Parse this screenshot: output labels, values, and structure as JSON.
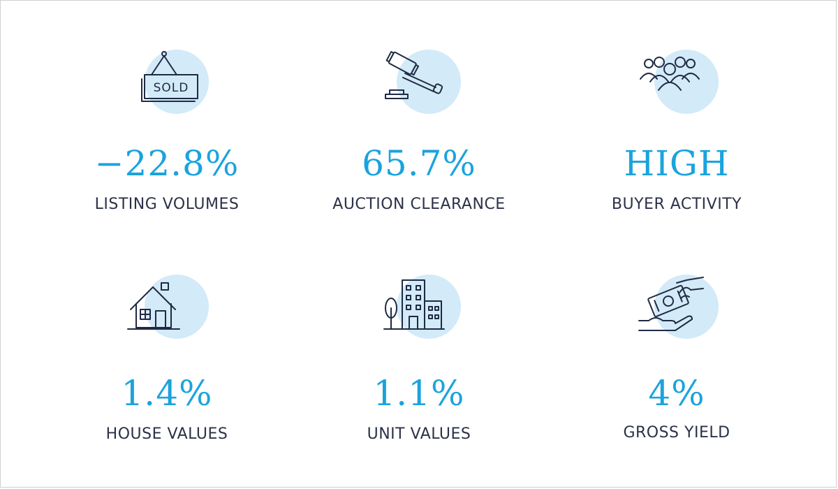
{
  "colors": {
    "accent": "#1aa3dd",
    "icon_bg": "#d3eaf8",
    "label": "#2c3148",
    "icon_ink": "#1f2a44"
  },
  "stats": [
    {
      "value": "−22.8%",
      "label": "LISTING VOLUMES",
      "icon": "sold-sign-icon",
      "icon_text": "SOLD"
    },
    {
      "value": "65.7%",
      "label": "AUCTION CLEARANCE",
      "icon": "gavel-icon"
    },
    {
      "value": "HIGH",
      "label": "BUYER ACTIVITY",
      "icon": "people-group-icon"
    },
    {
      "value": "1.4%",
      "label": "HOUSE VALUES",
      "icon": "house-icon"
    },
    {
      "value": "1.1%",
      "label": "UNIT VALUES",
      "icon": "apartment-building-icon"
    },
    {
      "value": "4%",
      "label": "GROSS YIELD",
      "icon": "money-hand-icon"
    }
  ]
}
